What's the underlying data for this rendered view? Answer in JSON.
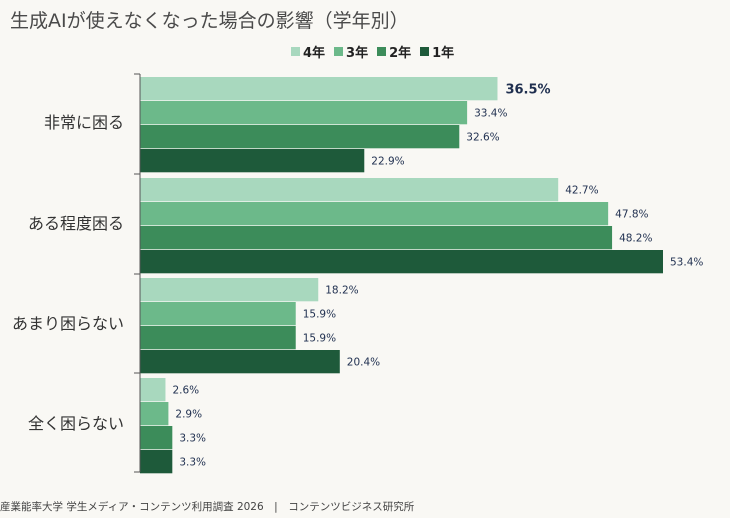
{
  "title": "生成AIが使えなくなった場合の影響（学年別）",
  "footer": "産業能率大学 学生メディア・コンテンツ利用調査 2026　|　コンテンツビジネス研究所",
  "chart_data": {
    "type": "bar",
    "orientation": "horizontal",
    "title": "生成AIが使えなくなった場合の影響（学年別）",
    "categories": [
      "非常に困る",
      "ある程度困る",
      "あまり困らない",
      "全く困らない"
    ],
    "series": [
      {
        "name": "4年",
        "color": "#a8d8be",
        "values": [
          36.5,
          42.7,
          18.2,
          2.6
        ]
      },
      {
        "name": "3年",
        "color": "#6cb98a",
        "values": [
          33.4,
          47.8,
          15.9,
          2.9
        ]
      },
      {
        "name": "2年",
        "color": "#3c8c5a",
        "values": [
          32.6,
          48.2,
          15.9,
          3.3
        ]
      },
      {
        "name": "1年",
        "color": "#1e5a3a",
        "values": [
          22.9,
          53.4,
          20.4,
          3.3
        ]
      }
    ],
    "value_format": "{v}%",
    "highlight": {
      "category_index": 0,
      "series_index": 0
    },
    "xlim": [
      0,
      55
    ],
    "grid": false,
    "legend": "top-center"
  }
}
